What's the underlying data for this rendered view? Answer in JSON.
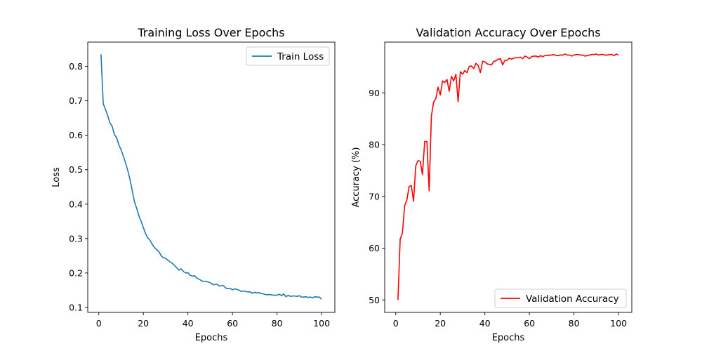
{
  "chart_data": [
    {
      "type": "line",
      "title": "Training Loss Over Epochs",
      "xlabel": "Epochs",
      "ylabel": "Loss",
      "xlim": [
        -4.95,
        105.95
      ],
      "ylim": [
        0.0855,
        0.8705
      ],
      "xticks": [
        0,
        20,
        40,
        60,
        80,
        100
      ],
      "yticks": [
        0.1,
        0.2,
        0.3,
        0.4,
        0.5,
        0.6,
        0.7,
        0.8
      ],
      "xtick_labels": [
        "0",
        "20",
        "40",
        "60",
        "80",
        "100"
      ],
      "ytick_labels": [
        "0.1",
        "0.2",
        "0.3",
        "0.4",
        "0.5",
        "0.6",
        "0.7",
        "0.8"
      ],
      "legend_position": "upper right",
      "color": "#1f77b4",
      "series": [
        {
          "name": "Train Loss",
          "x": [
            1,
            2,
            3,
            4,
            5,
            6,
            7,
            8,
            9,
            10,
            11,
            12,
            13,
            14,
            15,
            16,
            17,
            18,
            19,
            20,
            21,
            22,
            23,
            24,
            25,
            26,
            27,
            28,
            29,
            30,
            31,
            32,
            33,
            34,
            35,
            36,
            37,
            38,
            39,
            40,
            41,
            42,
            43,
            44,
            45,
            46,
            47,
            48,
            49,
            50,
            51,
            52,
            53,
            54,
            55,
            56,
            57,
            58,
            59,
            60,
            61,
            62,
            63,
            64,
            65,
            66,
            67,
            68,
            69,
            70,
            71,
            72,
            73,
            74,
            75,
            76,
            77,
            78,
            79,
            80,
            81,
            82,
            83,
            84,
            85,
            86,
            87,
            88,
            89,
            90,
            91,
            92,
            93,
            94,
            95,
            96,
            97,
            98,
            99,
            100
          ],
          "values": [
            0.835,
            0.692,
            0.675,
            0.657,
            0.636,
            0.626,
            0.602,
            0.593,
            0.572,
            0.558,
            0.54,
            0.52,
            0.498,
            0.472,
            0.44,
            0.407,
            0.388,
            0.366,
            0.35,
            0.332,
            0.314,
            0.302,
            0.295,
            0.283,
            0.274,
            0.268,
            0.262,
            0.25,
            0.244,
            0.243,
            0.237,
            0.232,
            0.228,
            0.222,
            0.215,
            0.208,
            0.212,
            0.204,
            0.2,
            0.201,
            0.193,
            0.191,
            0.192,
            0.185,
            0.182,
            0.178,
            0.175,
            0.176,
            0.174,
            0.172,
            0.167,
            0.166,
            0.168,
            0.162,
            0.163,
            0.163,
            0.156,
            0.155,
            0.155,
            0.151,
            0.154,
            0.152,
            0.15,
            0.146,
            0.148,
            0.146,
            0.145,
            0.145,
            0.141,
            0.144,
            0.142,
            0.143,
            0.14,
            0.139,
            0.137,
            0.137,
            0.137,
            0.136,
            0.135,
            0.136,
            0.138,
            0.134,
            0.139,
            0.131,
            0.135,
            0.132,
            0.133,
            0.133,
            0.132,
            0.134,
            0.13,
            0.13,
            0.131,
            0.129,
            0.13,
            0.128,
            0.131,
            0.13,
            0.13,
            0.124
          ]
        }
      ]
    },
    {
      "type": "line",
      "title": "Validation Accuracy Over Epochs",
      "xlabel": "Epochs",
      "ylabel": "Accuracy (%)",
      "xlim": [
        -4.95,
        105.95
      ],
      "ylim": [
        47.6,
        99.8
      ],
      "xticks": [
        0,
        20,
        40,
        60,
        80,
        100
      ],
      "yticks": [
        50,
        60,
        70,
        80,
        90
      ],
      "xtick_labels": [
        "0",
        "20",
        "40",
        "60",
        "80",
        "100"
      ],
      "ytick_labels": [
        "50",
        "60",
        "70",
        "80",
        "90"
      ],
      "legend_position": "lower right",
      "color": "#ff0000",
      "series": [
        {
          "name": "Validation Accuracy",
          "x": [
            1,
            2,
            3,
            4,
            5,
            6,
            7,
            8,
            9,
            10,
            11,
            12,
            13,
            14,
            15,
            16,
            17,
            18,
            19,
            20,
            21,
            22,
            23,
            24,
            25,
            26,
            27,
            28,
            29,
            30,
            31,
            32,
            33,
            34,
            35,
            36,
            37,
            38,
            39,
            40,
            41,
            42,
            43,
            44,
            45,
            46,
            47,
            48,
            49,
            50,
            51,
            52,
            53,
            54,
            55,
            56,
            57,
            58,
            59,
            60,
            61,
            62,
            63,
            64,
            65,
            66,
            67,
            68,
            69,
            70,
            71,
            72,
            73,
            74,
            75,
            76,
            77,
            78,
            79,
            80,
            81,
            82,
            83,
            84,
            85,
            86,
            87,
            88,
            89,
            90,
            91,
            92,
            93,
            94,
            95,
            96,
            97,
            98,
            99,
            100
          ],
          "values": [
            50.0,
            61.8,
            62.9,
            68.2,
            69.3,
            71.9,
            72.1,
            69.1,
            75.9,
            76.9,
            76.8,
            74.2,
            80.6,
            80.6,
            71.1,
            85.5,
            88.2,
            88.9,
            91.1,
            89.6,
            92.3,
            92.0,
            92.6,
            90.3,
            93.2,
            92.3,
            93.6,
            88.3,
            94.1,
            93.6,
            94.3,
            93.9,
            95.1,
            95.2,
            94.7,
            95.7,
            95.3,
            93.9,
            96.1,
            96.0,
            95.6,
            95.5,
            95.4,
            96.1,
            96.2,
            96.5,
            96.6,
            95.4,
            96.3,
            96.3,
            96.7,
            96.5,
            96.7,
            96.8,
            96.8,
            96.9,
            96.6,
            97.1,
            96.9,
            96.6,
            97.0,
            97.1,
            97.1,
            96.9,
            97.2,
            97.0,
            97.2,
            97.2,
            97.3,
            97.3,
            97.4,
            97.2,
            97.2,
            97.3,
            97.3,
            97.5,
            97.3,
            97.3,
            97.1,
            97.3,
            97.4,
            97.4,
            97.3,
            97.3,
            97.1,
            97.2,
            97.3,
            97.4,
            97.4,
            97.5,
            97.3,
            97.4,
            97.4,
            97.3,
            97.3,
            97.4,
            97.4,
            97.2,
            97.5,
            97.3
          ]
        }
      ]
    }
  ]
}
